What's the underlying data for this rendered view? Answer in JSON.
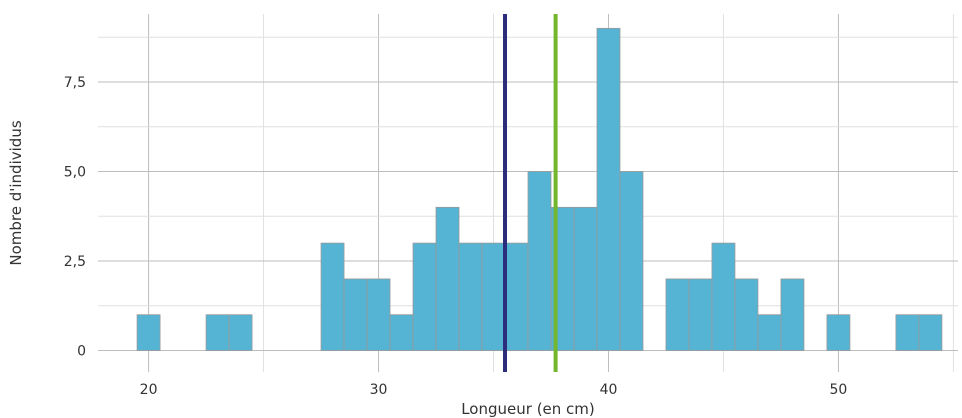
{
  "chart_data": {
    "type": "bar",
    "subtype": "histogram",
    "xlabel": "Longueur (en cm)",
    "ylabel": "Nombre d'individus",
    "xlim": [
      17.8,
      55.2
    ],
    "ylim": [
      -0.6,
      9.4
    ],
    "x_ticks": [
      20,
      30,
      40,
      50
    ],
    "x_tick_labels": [
      "20",
      "30",
      "40",
      "50"
    ],
    "y_ticks": [
      0,
      2.5,
      5,
      7.5
    ],
    "y_tick_labels": [
      "0",
      "2,5",
      "5,0",
      "7,5"
    ],
    "bin_width": 1,
    "bins": [
      {
        "start": 19.5,
        "end": 20.5,
        "count": 1
      },
      {
        "start": 22.5,
        "end": 23.5,
        "count": 1
      },
      {
        "start": 23.5,
        "end": 24.5,
        "count": 1
      },
      {
        "start": 27.5,
        "end": 28.5,
        "count": 3
      },
      {
        "start": 28.5,
        "end": 29.5,
        "count": 2
      },
      {
        "start": 29.5,
        "end": 30.5,
        "count": 2
      },
      {
        "start": 30.5,
        "end": 31.5,
        "count": 1
      },
      {
        "start": 31.5,
        "end": 32.5,
        "count": 3
      },
      {
        "start": 32.5,
        "end": 33.5,
        "count": 4
      },
      {
        "start": 33.5,
        "end": 34.5,
        "count": 3
      },
      {
        "start": 34.5,
        "end": 35.5,
        "count": 3
      },
      {
        "start": 35.5,
        "end": 36.5,
        "count": 3
      },
      {
        "start": 36.5,
        "end": 37.5,
        "count": 5
      },
      {
        "start": 37.5,
        "end": 38.5,
        "count": 4
      },
      {
        "start": 38.5,
        "end": 39.5,
        "count": 4
      },
      {
        "start": 39.5,
        "end": 40.5,
        "count": 9
      },
      {
        "start": 40.5,
        "end": 41.5,
        "count": 5
      },
      {
        "start": 42.5,
        "end": 43.5,
        "count": 2
      },
      {
        "start": 43.5,
        "end": 44.5,
        "count": 2
      },
      {
        "start": 44.5,
        "end": 45.5,
        "count": 3
      },
      {
        "start": 45.5,
        "end": 46.5,
        "count": 2
      },
      {
        "start": 46.5,
        "end": 47.5,
        "count": 1
      },
      {
        "start": 47.5,
        "end": 48.5,
        "count": 2
      },
      {
        "start": 49.5,
        "end": 50.5,
        "count": 1
      },
      {
        "start": 52.5,
        "end": 53.5,
        "count": 1
      },
      {
        "start": 53.5,
        "end": 54.5,
        "count": 1
      }
    ],
    "reference_lines": [
      {
        "x": 35.5,
        "color": "#2b2d7c"
      },
      {
        "x": 37.7,
        "color": "#74b72e"
      }
    ],
    "bar_color": "#55b3d4",
    "bar_edge_color": "#999999",
    "grid": true
  }
}
